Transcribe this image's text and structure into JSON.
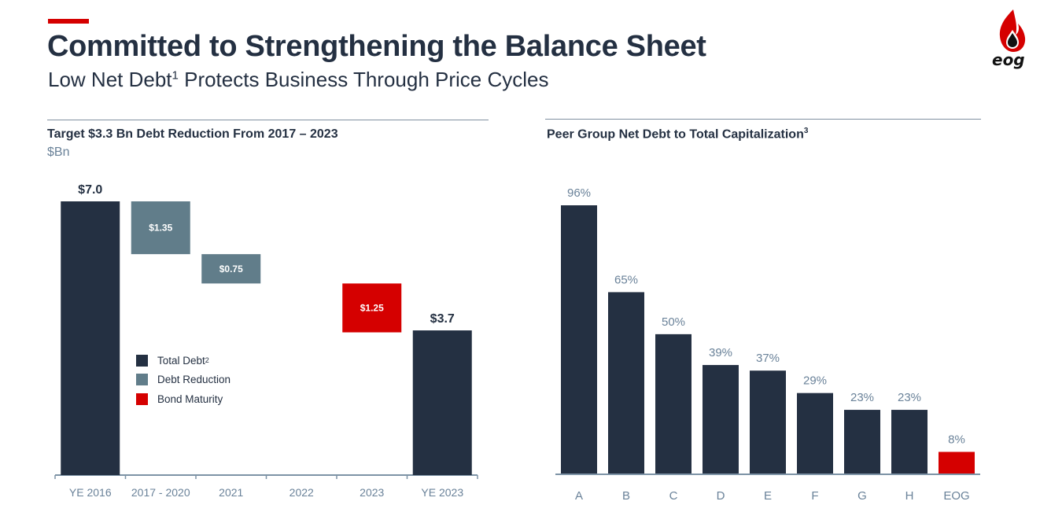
{
  "header": {
    "title": "Committed to Strengthening the Balance Sheet",
    "subtitle_pre": "Low Net Debt",
    "subtitle_sup": "1",
    "subtitle_post": " Protects Business Through Price Cycles",
    "logo_text": "eog",
    "logo_icon": "flame-oil-drop-icon"
  },
  "colors": {
    "total_debt": "#243042",
    "debt_reduction": "#617d8a",
    "bond_maturity": "#d50000",
    "label_muted": "#6a8299",
    "accent": "#d50000"
  },
  "left_panel": {
    "title": "Target $3.3 Bn Debt Reduction From 2017 – 2023",
    "unit": "$Bn"
  },
  "right_panel": {
    "title": "Peer Group Net Debt to Total Capitalization",
    "title_sup": "3"
  },
  "legend": [
    {
      "label": "Total Debt",
      "sup": "2",
      "color_key": "total_debt"
    },
    {
      "label": "Debt Reduction",
      "sup": "",
      "color_key": "debt_reduction"
    },
    {
      "label": "Bond Maturity",
      "sup": "",
      "color_key": "bond_maturity"
    }
  ],
  "chart_data": [
    {
      "type": "bar",
      "subtype": "waterfall",
      "title": "Target $3.3 Bn Debt Reduction From 2017 – 2023",
      "ylabel": "$Bn",
      "ylim": [
        0,
        7.0
      ],
      "grid": false,
      "legend_position": "center-left",
      "categories": [
        "YE 2016",
        "2017 - 2020",
        "2021",
        "2022",
        "2023",
        "YE 2023"
      ],
      "series": [
        {
          "category": "YE 2016",
          "kind": "total",
          "start": 0,
          "end": 7.0,
          "value": 7.0,
          "label": "$7.0",
          "series": "Total Debt"
        },
        {
          "category": "2017 - 2020",
          "kind": "decrease",
          "start": 7.0,
          "end": 5.65,
          "value": 1.35,
          "label": "$1.35",
          "series": "Debt Reduction"
        },
        {
          "category": "2021",
          "kind": "decrease",
          "start": 5.65,
          "end": 4.9,
          "value": 0.75,
          "label": "$0.75",
          "series": "Debt Reduction"
        },
        {
          "category": "2022",
          "kind": "none",
          "start": 4.9,
          "end": 4.9,
          "value": 0,
          "label": "",
          "series": ""
        },
        {
          "category": "2023",
          "kind": "decrease",
          "start": 4.9,
          "end": 3.65,
          "value": 1.25,
          "label": "$1.25",
          "series": "Bond Maturity"
        },
        {
          "category": "YE 2023",
          "kind": "total",
          "start": 0,
          "end": 3.7,
          "value": 3.7,
          "label": "$3.7",
          "series": "Total Debt"
        }
      ]
    },
    {
      "type": "bar",
      "title": "Peer Group Net Debt to Total Capitalization",
      "xlabel": "",
      "ylabel": "",
      "ylim": [
        0,
        100
      ],
      "grid": false,
      "categories": [
        "A",
        "B",
        "C",
        "D",
        "E",
        "F",
        "G",
        "H",
        "EOG"
      ],
      "values": [
        96,
        65,
        50,
        39,
        37,
        29,
        23,
        23,
        8
      ],
      "labels": [
        "96%",
        "65%",
        "50%",
        "39%",
        "37%",
        "29%",
        "23%",
        "23%",
        "8%"
      ],
      "highlight": "EOG"
    }
  ]
}
